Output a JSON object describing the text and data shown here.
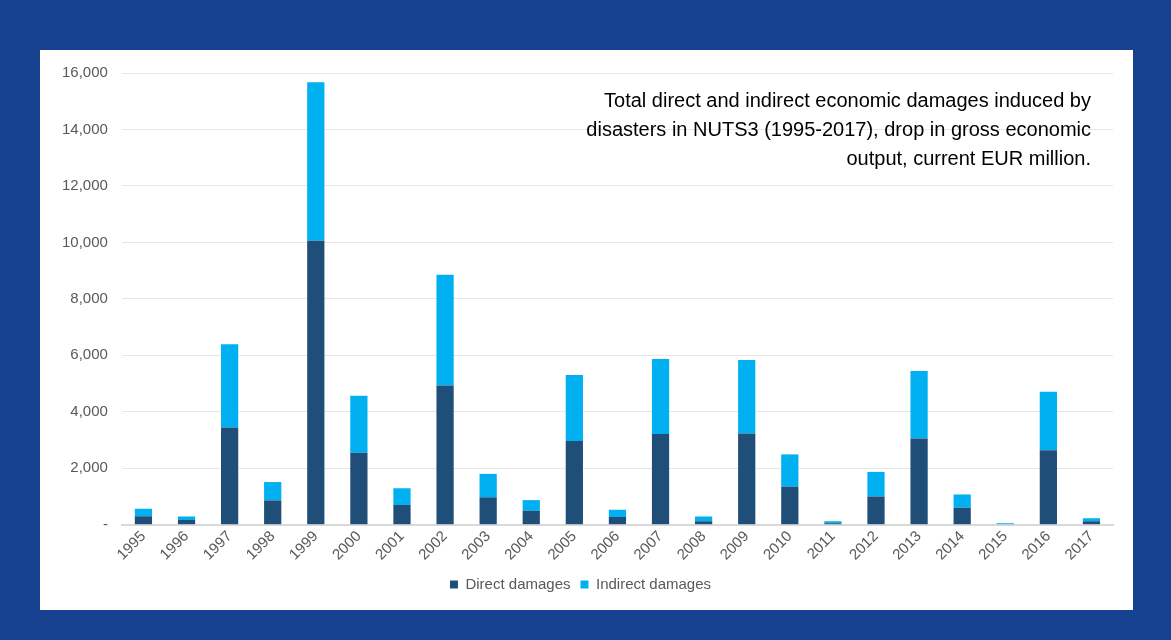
{
  "chart_data": {
    "type": "bar",
    "stacked": true,
    "title": "Total direct and indirect economic damages induced by disasters in NUTS3 (1995-2017), drop in gross economic output, current EUR million.",
    "categories": [
      "1995",
      "1996",
      "1997",
      "1998",
      "1999",
      "2000",
      "2001",
      "2002",
      "2003",
      "2004",
      "2005",
      "2006",
      "2007",
      "2008",
      "2009",
      "2010",
      "2011",
      "2012",
      "2013",
      "2014",
      "2015",
      "2016",
      "2017"
    ],
    "series": [
      {
        "name": "Direct damages",
        "color": "#1f4e79",
        "values": [
          300,
          170,
          3440,
          860,
          10060,
          2550,
          700,
          4930,
          970,
          490,
          2960,
          270,
          3210,
          120,
          3230,
          1350,
          50,
          1000,
          3050,
          600,
          0,
          2640,
          120
        ]
      },
      {
        "name": "Indirect damages",
        "color": "#00b0f0",
        "values": [
          260,
          120,
          2950,
          650,
          5610,
          2020,
          590,
          3920,
          830,
          380,
          2340,
          260,
          2660,
          170,
          2600,
          1140,
          70,
          870,
          2390,
          470,
          50,
          2070,
          110
        ]
      }
    ],
    "ylim": [
      0,
      16000
    ],
    "yticks": [
      {
        "value": 0,
        "label": "-"
      },
      {
        "value": 2000,
        "label": "2,000"
      },
      {
        "value": 4000,
        "label": "4,000"
      },
      {
        "value": 6000,
        "label": "6,000"
      },
      {
        "value": 8000,
        "label": "8,000"
      },
      {
        "value": 10000,
        "label": "10,000"
      },
      {
        "value": 12000,
        "label": "12,000"
      },
      {
        "value": 14000,
        "label": "14,000"
      },
      {
        "value": 16000,
        "label": "16,000"
      }
    ],
    "grid": "y",
    "legend": "bottom"
  }
}
